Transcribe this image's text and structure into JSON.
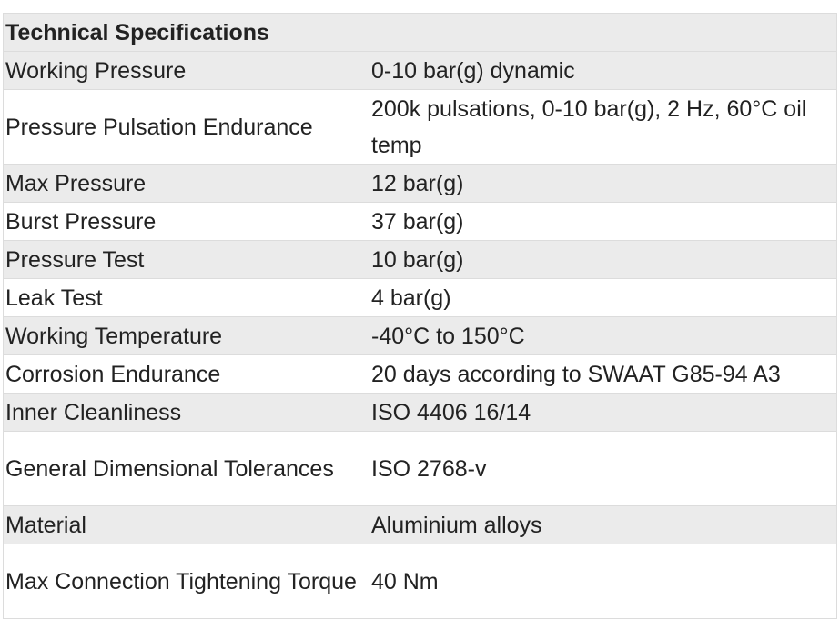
{
  "table": {
    "title": "Technical Specifications",
    "rows": [
      [
        "Working Pressure",
        "0-10 bar(g) dynamic"
      ],
      [
        "Pressure Pulsation Endurance",
        "200k pulsations, 0-10 bar(g), 2 Hz, 60°C oil temp"
      ],
      [
        "Max Pressure",
        "12 bar(g)"
      ],
      [
        "Burst Pressure",
        "37 bar(g)"
      ],
      [
        "Pressure Test",
        "10 bar(g)"
      ],
      [
        "Leak Test",
        "4 bar(g)"
      ],
      [
        "Working Temperature",
        "-40°C to 150°C"
      ],
      [
        "Corrosion Endurance",
        "20 days according to SWAAT G85-94 A3"
      ],
      [
        "Inner Cleanliness",
        "ISO 4406 16/14"
      ],
      [
        "General Dimensional Tolerances",
        "ISO 2768-v"
      ],
      [
        "Material",
        "Aluminium alloys"
      ],
      [
        "Max Connection Tightening Torque",
        "40 Nm"
      ]
    ]
  }
}
